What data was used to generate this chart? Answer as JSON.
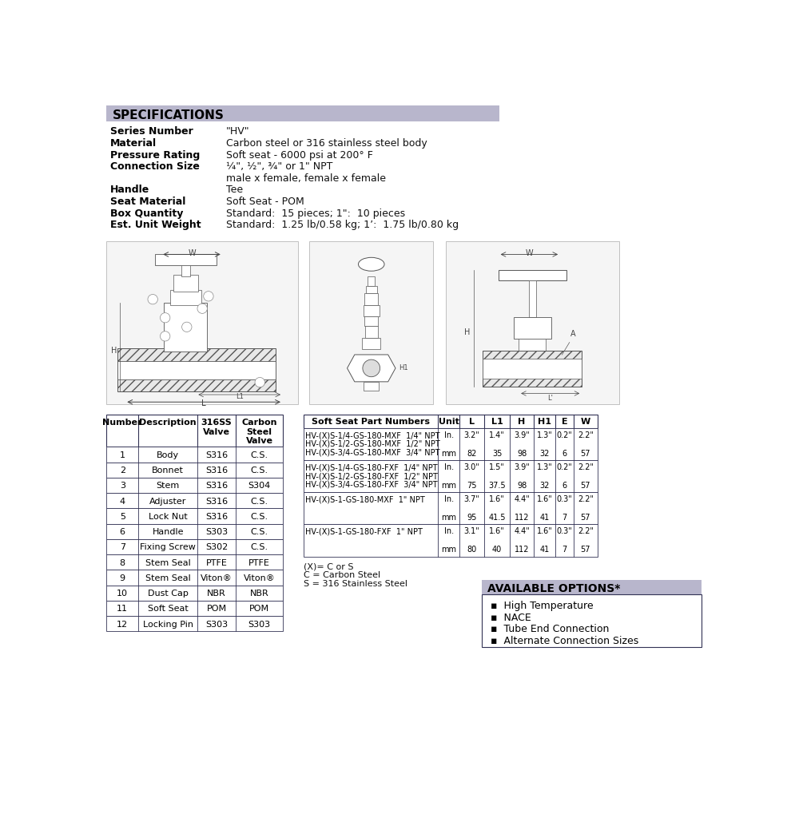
{
  "title": "SPECIFICATIONS",
  "title_bg": "#b8b6cc",
  "specs": [
    [
      "Series Number",
      "\"HV\""
    ],
    [
      "Material",
      "Carbon steel or 316 stainless steel body"
    ],
    [
      "Pressure Rating",
      "Soft seat - 6000 psi at 200° F"
    ],
    [
      "Connection Size",
      "¼\", ½\", ¾\" or 1\" NPT"
    ],
    [
      "",
      "male x female, female x female"
    ],
    [
      "Handle",
      "Tee"
    ],
    [
      "Seat Material",
      "Soft Seat - POM"
    ],
    [
      "Box Quantity",
      "Standard:  15 pieces; 1\":  10 pieces"
    ],
    [
      "Est. Unit Weight",
      "Standard:  1.25 lb/0.58 kg; 1’:  1.75 lb/0.80 kg"
    ]
  ],
  "parts_table_headers": [
    "Number",
    "Description",
    "316SS\nValve",
    "Carbon\nSteel\nValve"
  ],
  "parts_table": [
    [
      "1",
      "Body",
      "S316",
      "C.S."
    ],
    [
      "2",
      "Bonnet",
      "S316",
      "C.S."
    ],
    [
      "3",
      "Stem",
      "S316",
      "S304"
    ],
    [
      "4",
      "Adjuster",
      "S316",
      "C.S."
    ],
    [
      "5",
      "Lock Nut",
      "S316",
      "C.S."
    ],
    [
      "6",
      "Handle",
      "S303",
      "C.S."
    ],
    [
      "7",
      "Fixing Screw",
      "S302",
      "C.S."
    ],
    [
      "8",
      "Stem Seal",
      "PTFE",
      "PTFE"
    ],
    [
      "9",
      "Stem Seal",
      "Viton®",
      "Viton®"
    ],
    [
      "10",
      "Dust Cap",
      "NBR",
      "NBR"
    ],
    [
      "11",
      "Soft Seat",
      "POM",
      "POM"
    ],
    [
      "12",
      "Locking Pin",
      "S303",
      "S303"
    ]
  ],
  "soft_seat_headers": [
    "Soft Seat Part Numbers",
    "Unit",
    "L",
    "L1",
    "H",
    "H1",
    "E",
    "W"
  ],
  "soft_seat_data": [
    {
      "parts": [
        "HV-(X)S-1/4-GS-180-MXF  1/4\" NPT",
        "HV-(X)S-1/2-GS-180-MXF  1/2\" NPT",
        "HV-(X)S-3/4-GS-180-MXF  3/4\" NPT"
      ],
      "in_vals": [
        "3.2\"",
        "1.4\"",
        "3.9\"",
        "1.3\"",
        "0.2\"",
        "2.2\""
      ],
      "mm_vals": [
        "82",
        "35",
        "98",
        "32",
        "6",
        "57"
      ]
    },
    {
      "parts": [
        "HV-(X)S-1/4-GS-180-FXF  1/4\" NPT",
        "HV-(X)S-1/2-GS-180-FXF  1/2\" NPT",
        "HV-(X)S-3/4-GS-180-FXF  3/4\" NPT"
      ],
      "in_vals": [
        "3.0\"",
        "1.5\"",
        "3.9\"",
        "1.3\"",
        "0.2\"",
        "2.2\""
      ],
      "mm_vals": [
        "75",
        "37.5",
        "98",
        "32",
        "6",
        "57"
      ]
    },
    {
      "parts": [
        "HV-(X)S-1-GS-180-MXF  1\" NPT"
      ],
      "in_vals": [
        "3.7\"",
        "1.6\"",
        "4.4\"",
        "1.6\"",
        "0.3\"",
        "2.2\""
      ],
      "mm_vals": [
        "95",
        "41.5",
        "112",
        "41",
        "7",
        "57"
      ]
    },
    {
      "parts": [
        "HV-(X)S-1-GS-180-FXF  1\" NPT"
      ],
      "in_vals": [
        "3.1\"",
        "1.6\"",
        "4.4\"",
        "1.6\"",
        "0.3\"",
        "2.2\""
      ],
      "mm_vals": [
        "80",
        "40",
        "112",
        "41",
        "7",
        "57"
      ]
    }
  ],
  "footnote_lines": [
    "(X)= C or S",
    "C = Carbon Steel",
    "S = 316 Stainless Steel"
  ],
  "available_options_title": "AVAILABLE OPTIONS*",
  "available_options_bg": "#b8b6cc",
  "available_options": [
    "High Temperature",
    "NACE",
    "Tube End Connection",
    "Alternate Connection Sizes"
  ],
  "table_border_color": "#333355",
  "bg_color": "#ffffff"
}
